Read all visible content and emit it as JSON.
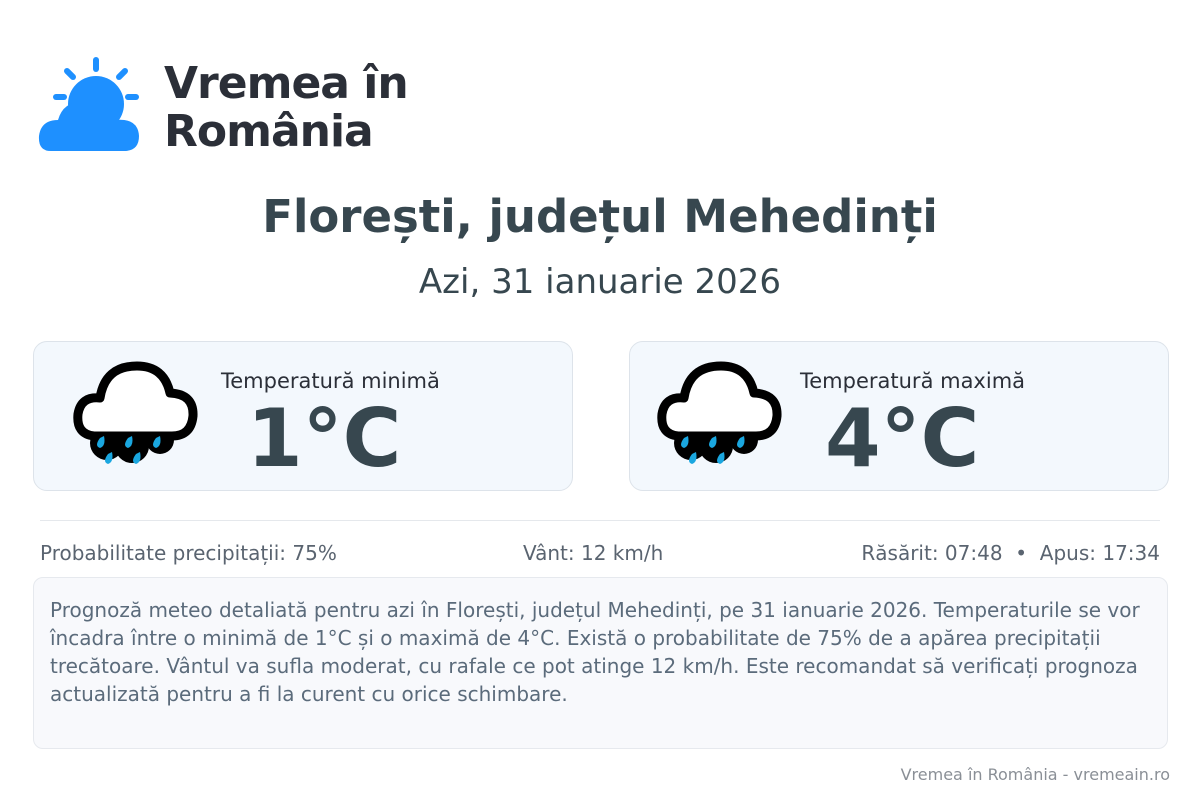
{
  "logo": {
    "text_line1": "Vremea în",
    "text_line2": "România",
    "icon": "sun-cloud-icon",
    "color": "#1e90ff"
  },
  "header": {
    "title": "Florești, județul Mehedinți",
    "subtitle": "Azi, 31 ianuarie 2026"
  },
  "cards": [
    {
      "label": "Temperatură minimă",
      "value": "1°C",
      "icon": "rain-cloud-icon"
    },
    {
      "label": "Temperatură maximă",
      "value": "4°C",
      "icon": "rain-cloud-icon"
    }
  ],
  "info": {
    "precipitation": "Probabilitate precipitații: 75%",
    "wind": "Vânt: 12 km/h",
    "sun": "Răsărit: 07:48  •  Apus: 17:34"
  },
  "description": "Prognoză meteo detaliată pentru azi în Florești, județul Mehedinți, pe 31 ianuarie 2026. Temperaturile se vor încadra între o minimă de 1°C și o maximă de 4°C. Există o probabilitate de 75% de a apărea precipitații trecătoare. Vântul va sufla moderat, cu rafale ce pot atinge 12 km/h. Este recomandat să verificați prognoza actualizată pentru a fi la curent cu orice schimbare.",
  "footer": "Vremea în România - vremeain.ro"
}
